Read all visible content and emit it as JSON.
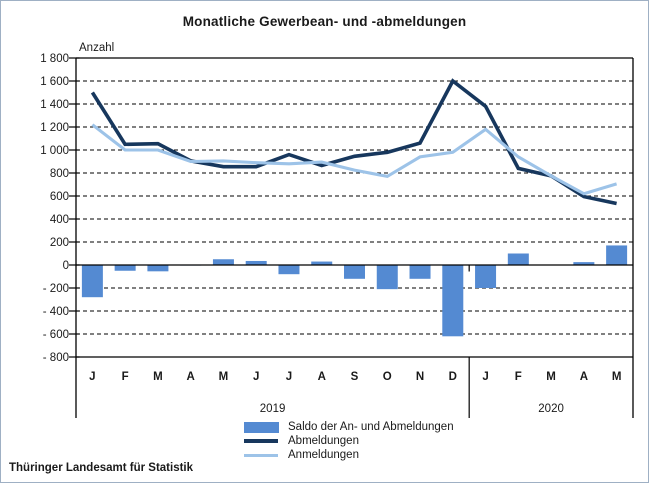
{
  "title": "Monatliche Gewerbean- und -abmeldungen",
  "y_unit_label": "Anzahl",
  "footer_source": "Thüringer Landesamt für Statistik",
  "colors": {
    "bar": "#548ad2",
    "line_dark": "#17375d",
    "line_light": "#9dc3e8",
    "axis": "#000000",
    "text": "#1a1a1a",
    "frame": "#9fb0c4"
  },
  "chart_data": {
    "type": "bar+line combo",
    "categories": [
      "J",
      "F",
      "M",
      "A",
      "M",
      "J",
      "J",
      "A",
      "S",
      "O",
      "N",
      "D",
      "J",
      "F",
      "M",
      "A",
      "M"
    ],
    "year_groups": [
      {
        "label": "2019",
        "months": 12
      },
      {
        "label": "2020",
        "months": 5
      }
    ],
    "series": [
      {
        "name": "Saldo der An- und Abmeldungen",
        "type": "bar",
        "values": [
          -280,
          -50,
          -55,
          -5,
          50,
          35,
          -80,
          30,
          -120,
          -210,
          -120,
          -620,
          -200,
          100,
          0,
          25,
          170
        ]
      },
      {
        "name": "Abmeldungen",
        "type": "line",
        "values": [
          1500,
          1050,
          1055,
          905,
          855,
          855,
          960,
          865,
          945,
          980,
          1060,
          1600,
          1380,
          840,
          775,
          595,
          535
        ]
      },
      {
        "name": "Anmeldungen",
        "type": "line",
        "values": [
          1220,
          1000,
          1000,
          900,
          905,
          890,
          880,
          895,
          825,
          770,
          940,
          980,
          1180,
          940,
          775,
          620,
          705
        ]
      }
    ],
    "ylim": [
      -800,
      1800
    ],
    "y_tick_step": 200,
    "y_ticks": [
      {
        "value": 1800,
        "label": "1 800"
      },
      {
        "value": 1600,
        "label": "1 600"
      },
      {
        "value": 1400,
        "label": "1 400"
      },
      {
        "value": 1200,
        "label": "1 200"
      },
      {
        "value": 1000,
        "label": "1 000"
      },
      {
        "value": 800,
        "label": "800"
      },
      {
        "value": 600,
        "label": "600"
      },
      {
        "value": 400,
        "label": "400"
      },
      {
        "value": 200,
        "label": "200"
      },
      {
        "value": 0,
        "label": "0"
      },
      {
        "value": -200,
        "label": "- 200"
      },
      {
        "value": -400,
        "label": "- 400"
      },
      {
        "value": -600,
        "label": "- 600"
      },
      {
        "value": -800,
        "label": "- 800"
      }
    ],
    "grid": "dashed horizontal",
    "legend_position": "bottom-center"
  }
}
